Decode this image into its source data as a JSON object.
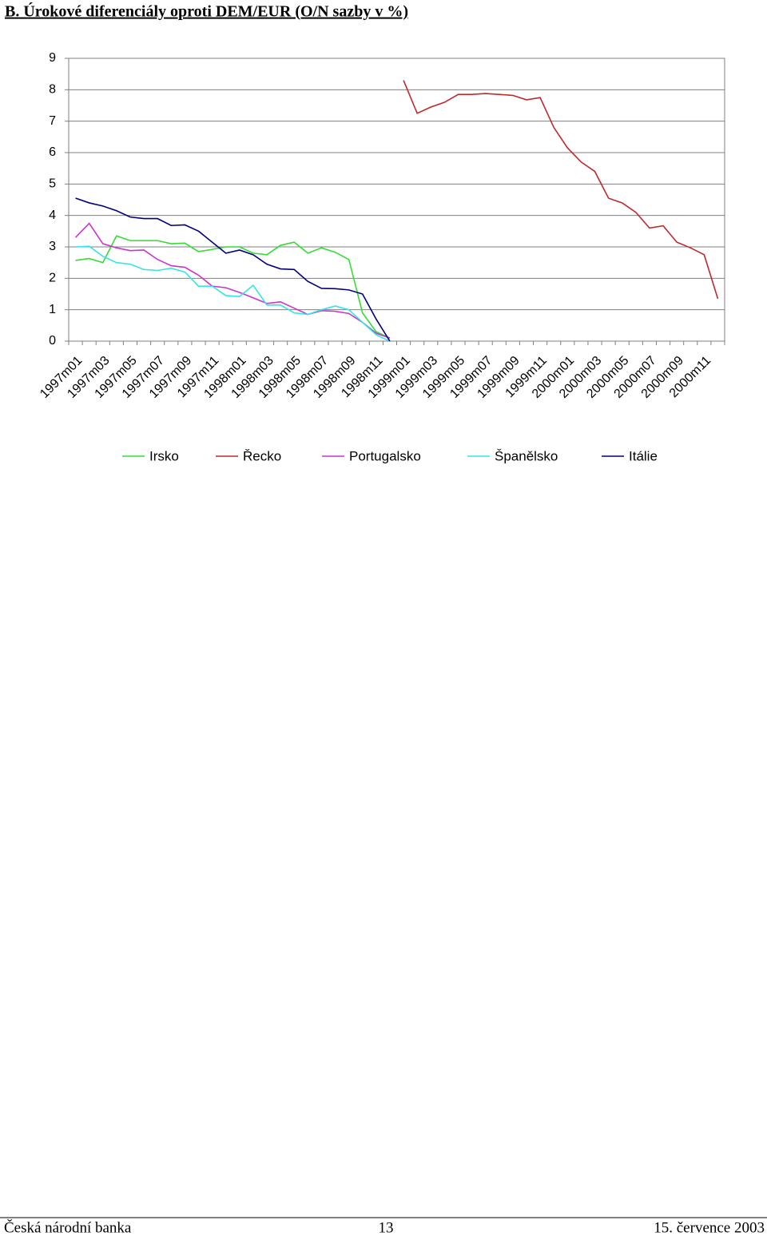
{
  "heading": "B.  Úrokové diferenciály oproti DEM/EUR (O/N sazby v %)",
  "footer": {
    "left": "Česká národní banka",
    "center": "13",
    "right": "15. července 2003"
  },
  "chart_data": {
    "type": "line",
    "categories": [
      "1997m01",
      null,
      "1997m03",
      null,
      "1997m05",
      null,
      "1997m07",
      null,
      "1997m09",
      null,
      "1997m11",
      null,
      "1998m01",
      null,
      "1998m03",
      null,
      "1998m05",
      null,
      "1998m07",
      null,
      "1998m09",
      null,
      "1998m11",
      null,
      "1999m01",
      null,
      "1999m03",
      null,
      "1999m05",
      null,
      "1999m07",
      null,
      "1999m09",
      null,
      "1999m11",
      null,
      "2000m01",
      null,
      "2000m03",
      null,
      "2000m05",
      null,
      "2000m07",
      null,
      "2000m09",
      null,
      "2000m11",
      null
    ],
    "ylim": [
      0,
      9
    ],
    "yticks": [
      0,
      1,
      2,
      3,
      4,
      5,
      6,
      7,
      8,
      9
    ],
    "grid": true,
    "legend": "bottom",
    "series": [
      {
        "name": "Irsko",
        "color": "#33dd33",
        "values": [
          2.57,
          2.63,
          2.5,
          3.35,
          3.2,
          3.2,
          3.2,
          3.1,
          3.12,
          2.85,
          2.92,
          3.0,
          3.0,
          2.8,
          2.75,
          3.05,
          3.15,
          2.8,
          2.97,
          2.83,
          2.6,
          0.9,
          0.3,
          0.1,
          null,
          null,
          null,
          null,
          null,
          null,
          null,
          null,
          null,
          null,
          null,
          null,
          null,
          null,
          null,
          null,
          null,
          null,
          null,
          null,
          null,
          null,
          null,
          null
        ]
      },
      {
        "name": "Řecko",
        "color": "#c0282d",
        "values": [
          null,
          null,
          null,
          null,
          null,
          null,
          null,
          null,
          null,
          null,
          null,
          null,
          null,
          null,
          null,
          null,
          null,
          null,
          null,
          null,
          null,
          null,
          null,
          null,
          8.3,
          7.25,
          7.45,
          7.6,
          7.85,
          7.85,
          7.88,
          7.85,
          7.82,
          7.68,
          7.75,
          6.8,
          6.15,
          5.7,
          5.4,
          4.55,
          4.4,
          4.1,
          3.6,
          3.67,
          3.15,
          2.97,
          2.75,
          1.35
        ]
      },
      {
        "name": "Portugalsko",
        "color": "#cc33cc",
        "values": [
          3.3,
          3.75,
          3.1,
          2.97,
          2.88,
          2.9,
          2.6,
          2.4,
          2.35,
          2.1,
          1.75,
          1.7,
          1.55,
          1.38,
          1.2,
          1.25,
          1.05,
          0.85,
          0.97,
          0.95,
          0.88,
          0.6,
          0.25,
          0.1,
          null,
          null,
          null,
          null,
          null,
          null,
          null,
          null,
          null,
          null,
          null,
          null,
          null,
          null,
          null,
          null,
          null,
          null,
          null,
          null,
          null,
          null,
          null,
          null
        ]
      },
      {
        "name": "Španělsko",
        "color": "#33e6e6",
        "values": [
          3.0,
          3.02,
          2.7,
          2.5,
          2.45,
          2.28,
          2.25,
          2.32,
          2.2,
          1.75,
          1.75,
          1.45,
          1.42,
          1.78,
          1.15,
          1.15,
          0.9,
          0.85,
          1.0,
          1.12,
          1.0,
          0.6,
          0.2,
          0.0,
          null,
          null,
          null,
          null,
          null,
          null,
          null,
          null,
          null,
          null,
          null,
          null,
          null,
          null,
          null,
          null,
          null,
          null,
          null,
          null,
          null,
          null,
          null,
          null
        ]
      },
      {
        "name": "Itálie",
        "color": "#000080",
        "values": [
          4.55,
          4.4,
          4.3,
          4.15,
          3.95,
          3.9,
          3.9,
          3.68,
          3.7,
          3.5,
          3.15,
          2.8,
          2.9,
          2.75,
          2.45,
          2.3,
          2.28,
          1.9,
          1.68,
          1.67,
          1.63,
          1.5,
          0.7,
          0.0,
          null,
          null,
          null,
          null,
          null,
          null,
          null,
          null,
          null,
          null,
          null,
          null,
          null,
          null,
          null,
          null,
          null,
          null,
          null,
          null,
          null,
          null,
          null,
          null
        ]
      }
    ]
  }
}
